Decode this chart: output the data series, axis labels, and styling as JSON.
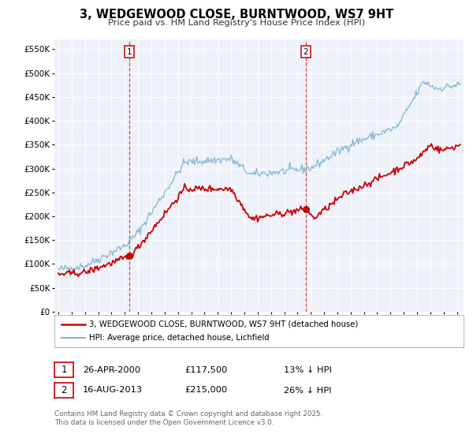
{
  "title": "3, WEDGEWOOD CLOSE, BURNTWOOD, WS7 9HT",
  "subtitle": "Price paid vs. HM Land Registry's House Price Index (HPI)",
  "legend_label_red": "3, WEDGEWOOD CLOSE, BURNTWOOD, WS7 9HT (detached house)",
  "legend_label_blue": "HPI: Average price, detached house, Lichfield",
  "red_color": "#cc0000",
  "blue_color": "#7fb3d3",
  "marker1_label": "1",
  "marker1_date": "26-APR-2000",
  "marker1_price": 117500,
  "marker1_hpi_diff": "13% ↓ HPI",
  "marker2_label": "2",
  "marker2_date": "16-AUG-2013",
  "marker2_price": 215000,
  "marker2_hpi_diff": "26% ↓ HPI",
  "footer": "Contains HM Land Registry data © Crown copyright and database right 2025.\nThis data is licensed under the Open Government Licence v3.0.",
  "ylim": [
    0,
    570000
  ],
  "yticks": [
    0,
    50000,
    100000,
    150000,
    200000,
    250000,
    300000,
    350000,
    400000,
    450000,
    500000,
    550000
  ],
  "xlim_start": 1994.7,
  "xlim_end": 2025.5,
  "marker1_x": 2000.32,
  "marker2_x": 2013.63,
  "vline1_x": 2000.32,
  "vline2_x": 2013.63,
  "plot_bg": "#eef2f8"
}
